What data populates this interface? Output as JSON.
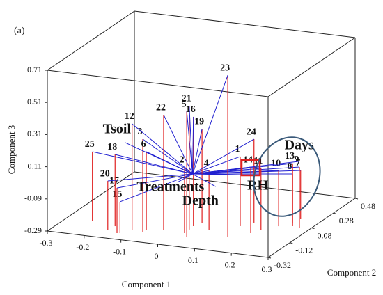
{
  "chart_data": {
    "type": "scatter3d",
    "panel": "(a)",
    "xlabel": "Component 1",
    "ylabel": "Component 2",
    "zlabel": "Component 3",
    "xlim": [
      -0.3,
      0.3
    ],
    "xticks": [
      -0.3,
      -0.2,
      -0.1,
      0,
      0.1,
      0.2,
      0.3
    ],
    "ylim": [
      -0.32,
      0.48
    ],
    "yticks": [
      -0.32,
      -0.12,
      0.08,
      0.28,
      0.48
    ],
    "zlim": [
      -0.29,
      0.71
    ],
    "zticks": [
      -0.29,
      -0.09,
      0.11,
      0.31,
      0.51,
      0.71
    ],
    "point_color": "#e02020",
    "line_color": "#2020d0",
    "points": [
      {
        "label": "1",
        "x": 0.129,
        "y": 0.002,
        "z": 0.143
      },
      {
        "label": "2",
        "x": 0.024,
        "y": -0.155,
        "z": 0.121
      },
      {
        "label": "3",
        "x": -0.077,
        "y": -0.197,
        "z": 0.286
      },
      {
        "label": "4",
        "x": 0.069,
        "y": -0.082,
        "z": 0.078
      },
      {
        "label": "5",
        "x": 0.041,
        "y": -0.192,
        "z": 0.489
      },
      {
        "label": "6",
        "x": -0.076,
        "y": -0.168,
        "z": 0.195
      },
      {
        "label": "7",
        "x": 0.245,
        "y": 0.165,
        "z": 0.013
      },
      {
        "label": "8",
        "x": 0.238,
        "y": 0.114,
        "z": 0.013
      },
      {
        "label": "9",
        "x": 0.273,
        "y": 0.059,
        "z": 0.091
      },
      {
        "label": "10",
        "x": 0.218,
        "y": 0.054,
        "z": 0.056
      },
      {
        "label": "11",
        "x": 0.189,
        "y": -0.01,
        "z": 0.091
      },
      {
        "label": "12",
        "x": -0.109,
        "y": -0.187,
        "z": 0.368
      },
      {
        "label": "13",
        "x": 0.25,
        "y": 0.074,
        "z": 0.1
      },
      {
        "label": "14",
        "x": 0.177,
        "y": -0.064,
        "z": 0.121
      },
      {
        "label": "15",
        "x": -0.125,
        "y": -0.244,
        "z": -0.095
      },
      {
        "label": "16",
        "x": 0.021,
        "y": -0.063,
        "z": 0.39
      },
      {
        "label": "17",
        "x": -0.132,
        "y": -0.248,
        "z": -0.009
      },
      {
        "label": "18",
        "x": -0.16,
        "y": -0.171,
        "z": 0.156
      },
      {
        "label": "19",
        "x": 0.029,
        "y": -0.011,
        "z": 0.294
      },
      {
        "label": "20",
        "x": -0.165,
        "y": -0.221,
        "z": 0.013
      },
      {
        "label": "21",
        "x": 0.023,
        "y": -0.108,
        "z": 0.48
      },
      {
        "label": "22",
        "x": -0.036,
        "y": -0.144,
        "z": 0.424
      },
      {
        "label": "23",
        "x": 0.136,
        "y": -0.136,
        "z": 0.714
      },
      {
        "label": "24",
        "x": 0.149,
        "y": 0.061,
        "z": 0.229
      },
      {
        "label": "25",
        "x": -0.229,
        "y": -0.146,
        "z": 0.143
      }
    ],
    "variables": [
      {
        "label": "Tsoil",
        "x": -0.183,
        "y": 0,
        "z": 0.145
      },
      {
        "label": "Days",
        "x": 0.29,
        "y": 0,
        "z": 0.158
      },
      {
        "label": "RH",
        "x": 0.177,
        "y": 0,
        "z": 0.04
      },
      {
        "label": "Treatments",
        "x": -0.041,
        "y": 0,
        "z": -0.063
      },
      {
        "label": "Depth",
        "x": 0.063,
        "y": 0,
        "z": -0.061
      }
    ]
  }
}
